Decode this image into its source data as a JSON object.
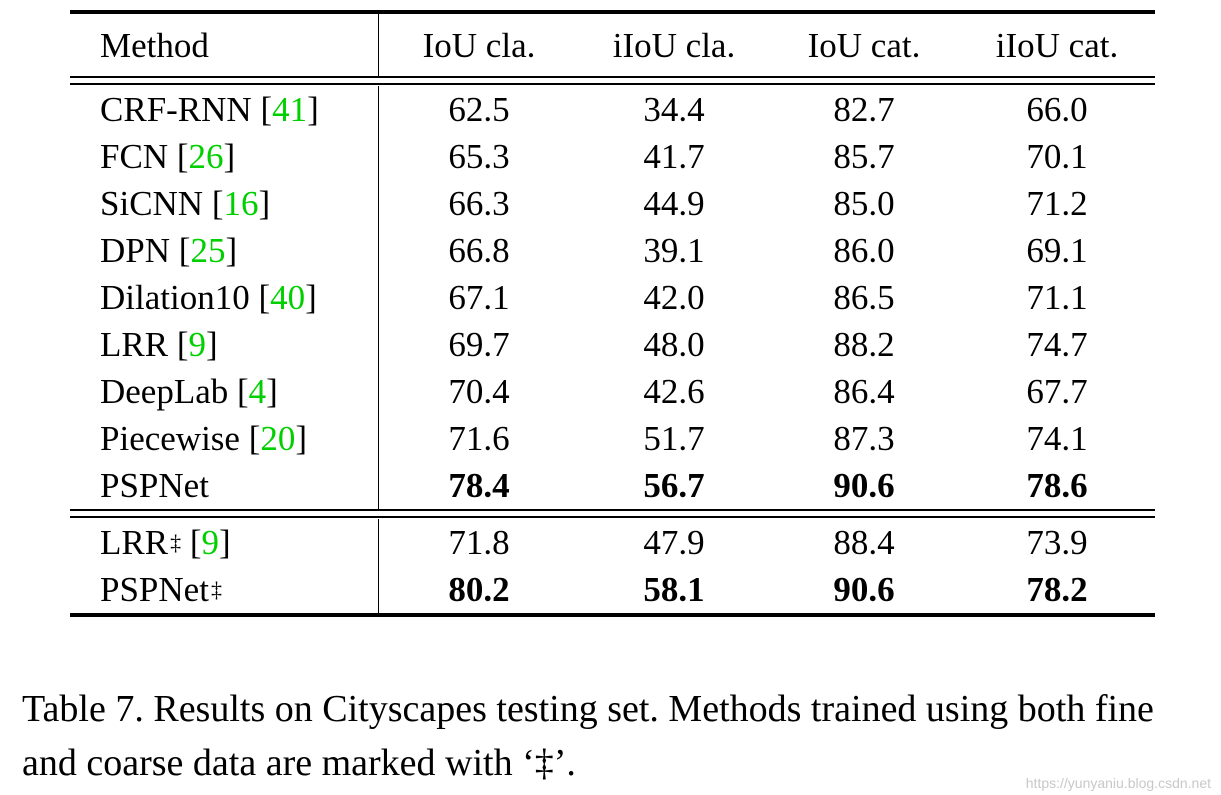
{
  "table": {
    "headers": [
      "Method",
      "IoU cla.",
      "iIoU cla.",
      "IoU cat.",
      "iIoU cat."
    ],
    "group1": [
      {
        "name": "CRF-RNN",
        "cite": "41",
        "values": [
          "62.5",
          "34.4",
          "82.7",
          "66.0"
        ]
      },
      {
        "name": "FCN",
        "cite": "26",
        "values": [
          "65.3",
          "41.7",
          "85.7",
          "70.1"
        ]
      },
      {
        "name": "SiCNN ",
        "cite": "16",
        "values": [
          "66.3",
          "44.9",
          "85.0",
          "71.2"
        ]
      },
      {
        "name": "DPN",
        "cite": "25",
        "values": [
          "66.8",
          "39.1",
          "86.0",
          "69.1"
        ]
      },
      {
        "name": "Dilation10",
        "cite": "40",
        "values": [
          "67.1",
          "42.0",
          "86.5",
          "71.1"
        ]
      },
      {
        "name": "LRR",
        "cite": "9",
        "values": [
          "69.7",
          "48.0",
          "88.2",
          "74.7"
        ]
      },
      {
        "name": "DeepLab",
        "cite": "4",
        "values": [
          "70.4",
          "42.6",
          "86.4",
          "67.7"
        ]
      },
      {
        "name": "Piecewise",
        "cite": "20",
        "values": [
          "71.6",
          "51.7",
          "87.3",
          "74.1"
        ]
      },
      {
        "name": "PSPNet",
        "cite": "",
        "values": [
          "78.4",
          "56.7",
          "90.6",
          "78.6"
        ],
        "bold": true
      }
    ],
    "group2": [
      {
        "name": "LRR",
        "sup": "‡",
        "cite": "9",
        "values": [
          "71.8",
          "47.9",
          "88.4",
          "73.9"
        ]
      },
      {
        "name": "PSPNet",
        "sup": "‡",
        "cite": "",
        "values": [
          "80.2",
          "58.1",
          "90.6",
          "78.2"
        ],
        "bold": true
      }
    ]
  },
  "caption": "Table 7. Results on Cityscapes testing set. Methods trained using both fine and coarse data are marked with ‘‡’.",
  "watermark": "https://yunyaniu.blog.csdn.net"
}
